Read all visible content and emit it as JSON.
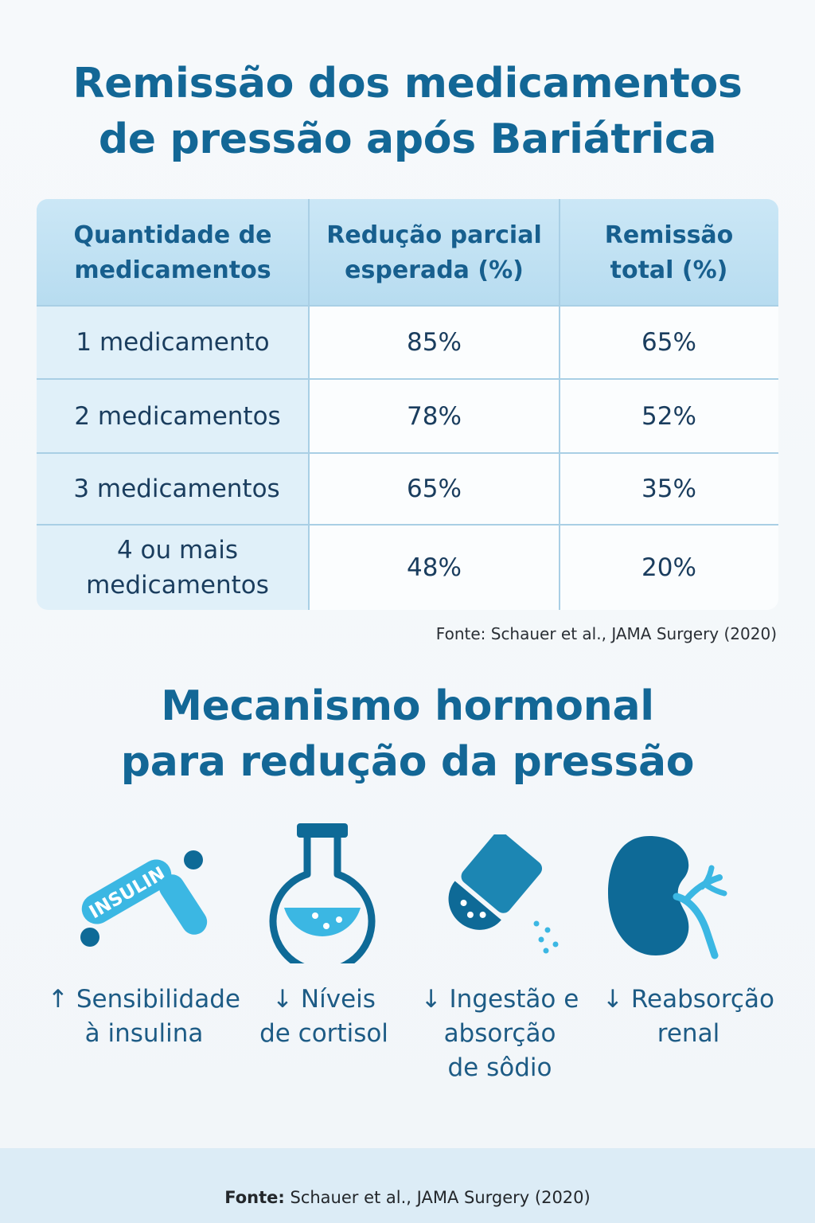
{
  "title1": {
    "line1": "Remissão dos medicamentos",
    "line2": "de pressão após Bariátrica"
  },
  "table": {
    "headers": [
      {
        "line1": "Quantidade de",
        "line2": "medicamentos"
      },
      {
        "line1": "Redução parcial",
        "line2": "esperada (%)"
      },
      {
        "line1": "Remissão",
        "line2": "total (%)"
      }
    ],
    "rows": [
      {
        "label1": "1 medicamento",
        "label2": "",
        "partial": "85%",
        "total": "65%"
      },
      {
        "label1": "2 medicamentos",
        "label2": "",
        "partial": "78%",
        "total": "52%"
      },
      {
        "label1": "3 medicamentos",
        "label2": "",
        "partial": "65%",
        "total": "35%"
      },
      {
        "label1": "4 ou mais",
        "label2": "medicamentos",
        "partial": "48%",
        "total": "20%"
      }
    ]
  },
  "source_table": "Fonte: Schauer et al., JAMA Surgery (2020)",
  "title2": {
    "line1": "Mecanismo hormonal",
    "line2": "para redução da pressão"
  },
  "mechanisms": [
    {
      "icon": "insulin-pill-icon",
      "pill_text": "INSULIN",
      "line1": "↑ Sensibilidade",
      "line2": "à insulina",
      "line3": ""
    },
    {
      "icon": "flask-icon",
      "line1": "↓ Níveis",
      "line2": "de cortisol",
      "line3": ""
    },
    {
      "icon": "salt-shaker-icon",
      "line1": "↓ Ingestão e",
      "line2": "absorção",
      "line3": "de sôdio"
    },
    {
      "icon": "kidney-icon",
      "line1": "↓ Reabsorção",
      "line2": "renal",
      "line3": ""
    }
  ],
  "footer": {
    "label": "Fonte:",
    "text": "Schauer et al., JAMA Surgery (2020)"
  },
  "colors": {
    "title": "#136796",
    "table_header": "#c4e3f4",
    "icon_dark": "#0e6a97",
    "icon_light": "#3bb7e3"
  }
}
